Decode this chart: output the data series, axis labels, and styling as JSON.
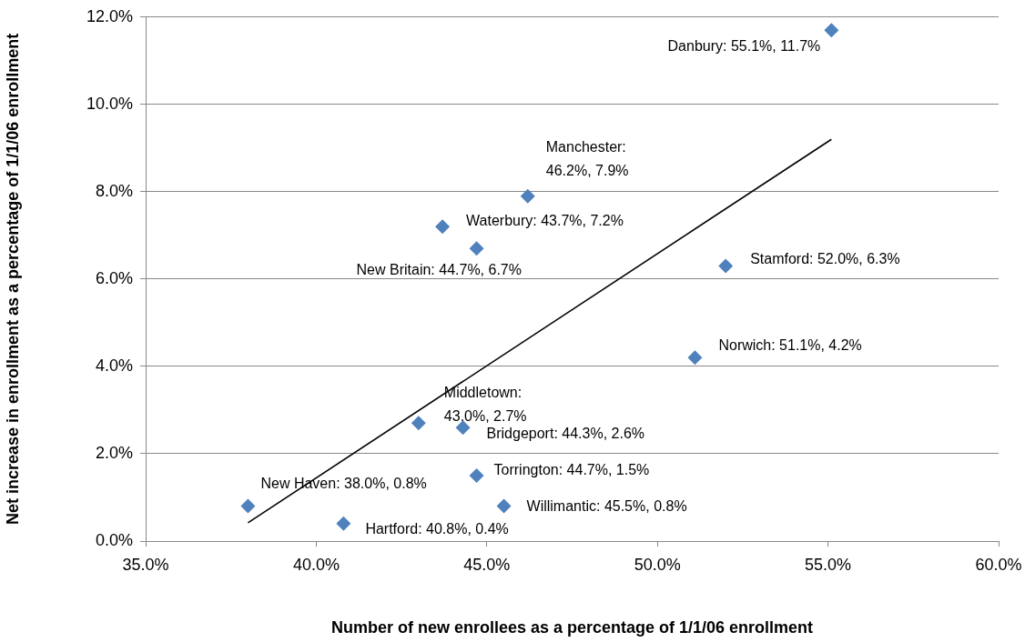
{
  "chart_data": {
    "type": "scatter",
    "xlabel": "Number of new enrollees as a percentage of 1/1/06 enrollment",
    "ylabel": "Net increase in enrollment as a percentage of 1/1/06 enrollment",
    "xlim": [
      35,
      60
    ],
    "xticks": [
      {
        "value": 35,
        "label": "35.0%"
      },
      {
        "value": 40,
        "label": "40.0%"
      },
      {
        "value": 45,
        "label": "45.0%"
      },
      {
        "value": 50,
        "label": "50.0%"
      },
      {
        "value": 55,
        "label": "55.0%"
      },
      {
        "value": 60,
        "label": "60.0%"
      }
    ],
    "ylim": [
      0,
      12
    ],
    "yticks": [
      {
        "value": 0,
        "label": "0.0%"
      },
      {
        "value": 2,
        "label": "2.0%"
      },
      {
        "value": 4,
        "label": "4.0%"
      },
      {
        "value": 6,
        "label": "6.0%"
      },
      {
        "value": 8,
        "label": "8.0%"
      },
      {
        "value": 10,
        "label": "10.0%"
      },
      {
        "value": 12,
        "label": "12.0%"
      }
    ],
    "grid": "y",
    "legend": false,
    "marker": "diamond",
    "series": [
      {
        "color": "#4f81bd",
        "x": [
          55.1,
          46.2,
          43.7,
          44.7,
          52.0,
          51.1,
          43.0,
          44.3,
          44.7,
          45.5,
          38.0,
          40.8
        ],
        "values": [
          11.7,
          7.9,
          7.2,
          6.7,
          6.3,
          4.2,
          2.7,
          2.6,
          1.5,
          0.8,
          0.8,
          0.4
        ]
      },
      {
        "type": "line",
        "color": "#000000",
        "marker": "none",
        "x": [
          38.0,
          55.1
        ],
        "values": [
          0.42,
          9.2
        ]
      }
    ],
    "annotations": [
      {
        "text": "Danbury: 55.1%, 11.7%",
        "x": 55.1,
        "y": 11.7
      },
      {
        "text": "Manchester:\n46.2%, 7.9%",
        "x": 46.2,
        "y": 7.9
      },
      {
        "text": "Waterbury: 43.7%, 7.2%",
        "x": 43.7,
        "y": 7.2
      },
      {
        "text": "New Britain: 44.7%, 6.7%",
        "x": 44.7,
        "y": 6.7
      },
      {
        "text": "Stamford: 52.0%, 6.3%",
        "x": 52.0,
        "y": 6.3
      },
      {
        "text": "Norwich: 51.1%, 4.2%",
        "x": 51.1,
        "y": 4.2
      },
      {
        "text": "Middletown:\n43.0%, 2.7%",
        "x": 43.0,
        "y": 2.7
      },
      {
        "text": "Bridgeport: 44.3%, 2.6%",
        "x": 44.3,
        "y": 2.6
      },
      {
        "text": "Torrington: 44.7%, 1.5%",
        "x": 44.7,
        "y": 1.5
      },
      {
        "text": "Willimantic: 45.5%, 0.8%",
        "x": 45.5,
        "y": 0.8
      },
      {
        "text": "New Haven: 38.0%, 0.8%",
        "x": 38.0,
        "y": 0.8
      },
      {
        "text": "Hartford: 40.8%, 0.4%",
        "x": 40.8,
        "y": 0.4
      }
    ]
  }
}
